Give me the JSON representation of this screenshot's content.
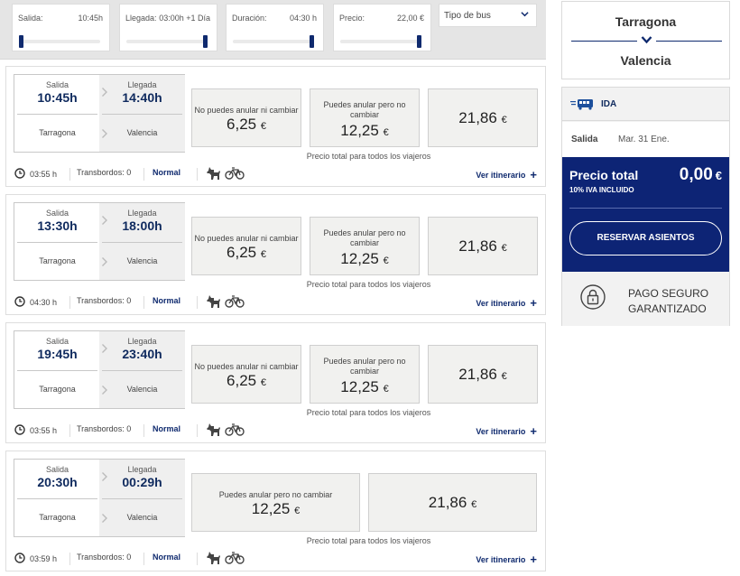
{
  "filters": [
    {
      "label": "Salida:",
      "value": "10:45h",
      "level": 0.0
    },
    {
      "label": "Llegada:",
      "value": "03:00h +1 Día",
      "level": 1.0
    },
    {
      "label": "Duración:",
      "value": "04:30 h",
      "level": 1.0
    },
    {
      "label": "Precio:",
      "value": "22,00 €",
      "level": 1.0
    }
  ],
  "bus_type": {
    "label": "Tipo de bus",
    "icon": "chevron-down-icon"
  },
  "results": [
    {
      "salida_label": "Salida",
      "llegada_label": "Llegada",
      "salida": "10:45h",
      "llegada": "14:40h",
      "from": "Tarragona",
      "to": "Valencia",
      "prices": [
        {
          "label": "No puedes anular ni cambiar",
          "value": "6,25",
          "currency": "€"
        },
        {
          "label": "Puedes anular pero no cambiar",
          "value": "12,25",
          "currency": "€"
        },
        {
          "label": "",
          "value": "21,86",
          "currency": "€"
        }
      ],
      "total_note": "Precio total para todos los viajeros",
      "duration": "03:55 h",
      "transbordos": "Transbordos: 0",
      "class": "Normal",
      "itinerary": "Ver itinerario",
      "plus": "+"
    },
    {
      "salida_label": "Salida",
      "llegada_label": "Llegada",
      "salida": "13:30h",
      "llegada": "18:00h",
      "from": "Tarragona",
      "to": "Valencia",
      "prices": [
        {
          "label": "No puedes anular ni cambiar",
          "value": "6,25",
          "currency": "€"
        },
        {
          "label": "Puedes anular pero no cambiar",
          "value": "12,25",
          "currency": "€"
        },
        {
          "label": "",
          "value": "21,86",
          "currency": "€"
        }
      ],
      "total_note": "Precio total para todos los viajeros",
      "duration": "04:30 h",
      "transbordos": "Transbordos: 0",
      "class": "Normal",
      "itinerary": "Ver itinerario",
      "plus": "+"
    },
    {
      "salida_label": "Salida",
      "llegada_label": "Llegada",
      "salida": "19:45h",
      "llegada": "23:40h",
      "from": "Tarragona",
      "to": "Valencia",
      "prices": [
        {
          "label": "No puedes anular ni cambiar",
          "value": "6,25",
          "currency": "€"
        },
        {
          "label": "Puedes anular pero no cambiar",
          "value": "12,25",
          "currency": "€"
        },
        {
          "label": "",
          "value": "21,86",
          "currency": "€"
        }
      ],
      "total_note": "Precio total para todos los viajeros",
      "duration": "03:55 h",
      "transbordos": "Transbordos: 0",
      "class": "Normal",
      "itinerary": "Ver itinerario",
      "plus": "+"
    },
    {
      "salida_label": "Salida",
      "llegada_label": "Llegada",
      "salida": "20:30h",
      "llegada": "00:29h",
      "from": "Tarragona",
      "to": "Valencia",
      "prices": [
        {
          "label": "Puedes anular pero no cambiar",
          "value": "12,25",
          "currency": "€"
        },
        {
          "label": "",
          "value": "21,86",
          "currency": "€"
        }
      ],
      "total_note": "Precio total para todos los viajeros",
      "duration": "03:59 h",
      "transbordos": "Transbordos: 0",
      "class": "Normal",
      "itinerary": "Ver itinerario",
      "plus": "+"
    }
  ],
  "sidebar": {
    "route": {
      "from": "Tarragona",
      "to": "Valencia"
    },
    "trip": {
      "direction": "IDA",
      "salida_label": "Salida",
      "salida_value": "Mar. 31 Ene."
    },
    "total": {
      "label": "Precio total",
      "iva": "10% IVA INCLUIDO",
      "amount": "0,00",
      "currency": "€"
    },
    "reserve_label": "RESERVAR ASIENTOS",
    "secure": {
      "line1": "PAGO SEGURO",
      "line2": "GARANTIZADO"
    }
  },
  "colors": {
    "brand_navy": "#0d2475",
    "accent": "#0f2a6e",
    "card_bg": "#f1f1ef"
  }
}
